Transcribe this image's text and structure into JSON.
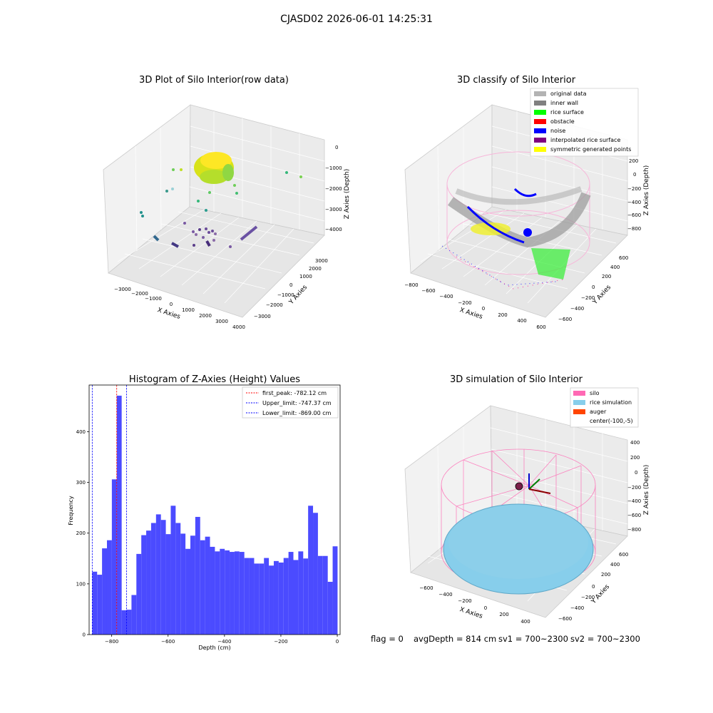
{
  "suptitle": "CJASD02 2026-06-01 14:25:31",
  "footer": {
    "flag": "flag = 0",
    "avg": "avgDepth = 814 cm",
    "sv1": "sv1 = 700~2300",
    "sv2": "sv2 = 700~2300"
  },
  "chart_data": [
    {
      "type": "scatter",
      "title": "3D Plot of Silo Interior(row data)",
      "xlabel": "X Axies",
      "ylabel": "Y Axies",
      "zlabel": "Z Axies (Depth)",
      "xticks": [
        "−3000",
        "−2000",
        "−1000",
        "0",
        "1000",
        "2000",
        "3000",
        "4000"
      ],
      "yticks": [
        "−3000",
        "−2000",
        "−1000",
        "0",
        "1000",
        "2000",
        "3000"
      ],
      "zticks": [
        "0",
        "−1000",
        "−2000",
        "−3000",
        "−4000"
      ],
      "colormap": "viridis"
    },
    {
      "type": "scatter",
      "title": "3D classify of Silo Interior",
      "xlabel": "X Axies",
      "ylabel": "Y Axies",
      "zlabel": "Z Axies (Depth)",
      "xticks": [
        "−800",
        "−600",
        "−400",
        "−200",
        "0",
        "200",
        "400",
        "600"
      ],
      "yticks": [
        "−600",
        "−400",
        "−200",
        "0",
        "200",
        "400",
        "600"
      ],
      "zticks": [
        "200",
        "0",
        "−200",
        "−400",
        "−600",
        "−800"
      ],
      "legend": [
        {
          "label": "original data",
          "color": "#b3b3b3"
        },
        {
          "label": "inner wall",
          "color": "#808080"
        },
        {
          "label": "rice surface",
          "color": "#00ff00"
        },
        {
          "label": "obstacle",
          "color": "#ff0000"
        },
        {
          "label": "noise",
          "color": "#0000ff"
        },
        {
          "label": "interpolated rice surface",
          "color": "#800080"
        },
        {
          "label": "symmetric generated points",
          "color": "#ffff00"
        }
      ]
    },
    {
      "type": "bar",
      "title": "Histogram of Z-Axies (Height) Values",
      "xlabel": "Depth (cm)",
      "ylabel": "Frequency",
      "xlim": [
        -880,
        10
      ],
      "ylim": [
        0,
        492
      ],
      "xticks": [
        -800,
        -600,
        -400,
        -200,
        0
      ],
      "xtick_labels": [
        "−800",
        "−600",
        "−400",
        "−200",
        "0"
      ],
      "yticks": [
        0,
        100,
        200,
        300,
        400
      ],
      "bar_color": "#4b4bff",
      "bins": {
        "start": -869,
        "width": 17.4,
        "values": [
          124,
          118,
          170,
          186,
          306,
          471,
          48,
          49,
          78,
          159,
          196,
          205,
          220,
          237,
          226,
          198,
          254,
          220,
          199,
          169,
          195,
          232,
          186,
          193,
          173,
          164,
          169,
          166,
          163,
          164,
          163,
          151,
          151,
          140,
          140,
          151,
          136,
          145,
          142,
          151,
          163,
          147,
          164,
          150,
          254,
          240,
          155,
          155,
          104,
          174
        ]
      },
      "lines": [
        {
          "label": "first_peak: -782.12 cm",
          "x": -782.12,
          "color": "#ff0000"
        },
        {
          "label": "Upper_limit: -747.37 cm",
          "x": -747.37,
          "color": "#0000ff"
        },
        {
          "label": "Lower_limit: -869.00 cm",
          "x": -869.0,
          "color": "#0000ff"
        }
      ]
    },
    {
      "type": "scatter",
      "title": "3D simulation of Silo Interior",
      "xlabel": "X Axies",
      "ylabel": "Y Axies",
      "zlabel": "Z Axies (Depth)",
      "xticks": [
        "−600",
        "−400",
        "−200",
        "0",
        "200",
        "400"
      ],
      "yticks": [
        "−600",
        "−400",
        "−200",
        "0",
        "200",
        "400",
        "600"
      ],
      "zticks": [
        "400",
        "200",
        "0",
        "−200",
        "−400",
        "−600",
        "−800"
      ],
      "legend": [
        {
          "label": "silo",
          "color": "#ff69b4"
        },
        {
          "label": "rice simulation",
          "color": "#87ceeb"
        },
        {
          "label": "auger",
          "color": "#ff4500"
        },
        {
          "label": "center(-100,-5)",
          "color": ""
        }
      ]
    }
  ]
}
